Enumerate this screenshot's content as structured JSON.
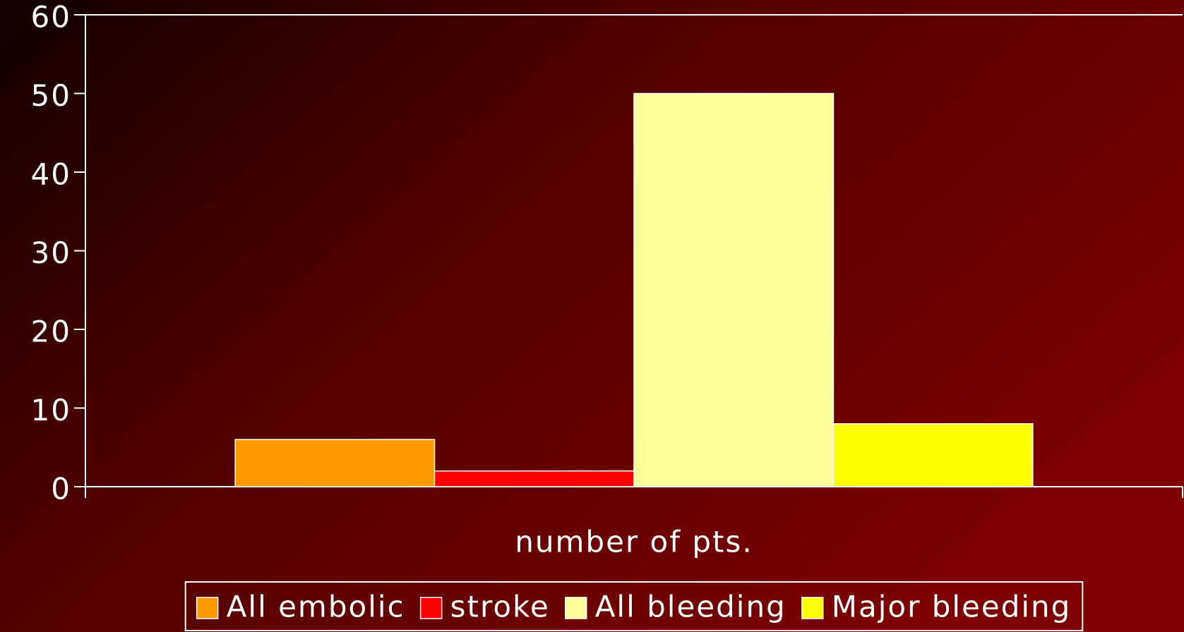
{
  "chart_data": {
    "type": "bar",
    "categories": [
      "number of pts."
    ],
    "series": [
      {
        "name": "All embolic",
        "color": "#ff9900",
        "values": [
          6
        ]
      },
      {
        "name": "stroke",
        "color": "#ff0000",
        "values": [
          2
        ]
      },
      {
        "name": "All bleeding",
        "color": "#ffff99",
        "values": [
          50
        ]
      },
      {
        "name": "Major bleeding",
        "color": "#ffff00",
        "values": [
          8
        ]
      }
    ],
    "ylim": [
      0,
      60
    ],
    "yticks": [
      0,
      10,
      20,
      30,
      40,
      50,
      60
    ],
    "grid": false,
    "legend": "bottom"
  }
}
